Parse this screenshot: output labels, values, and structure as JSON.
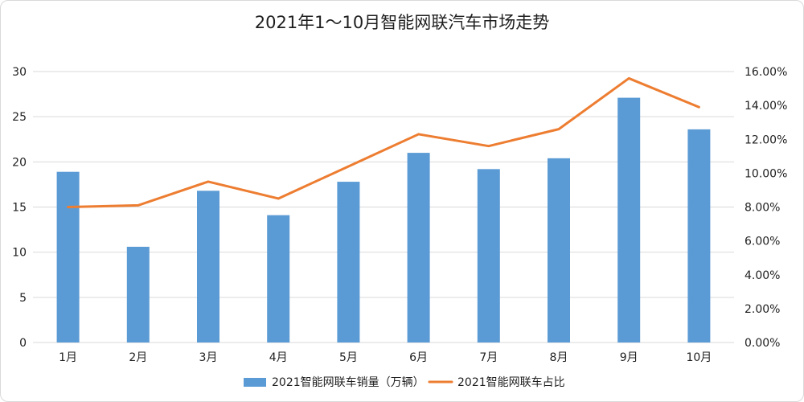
{
  "chart_data": {
    "type": "bar",
    "title": "2021年1～10月智能网联汽车市场走势",
    "categories": [
      "1月",
      "2月",
      "3月",
      "4月",
      "5月",
      "6月",
      "7月",
      "8月",
      "9月",
      "10月"
    ],
    "series": [
      {
        "name": "2021智能网联车销量（万辆）",
        "type": "bar",
        "axis": "left",
        "color": "#5b9bd5",
        "values": [
          18.9,
          10.6,
          16.8,
          14.1,
          17.8,
          21.0,
          19.2,
          20.4,
          27.1,
          23.6
        ]
      },
      {
        "name": "2021智能网联车占比",
        "type": "line",
        "axis": "right",
        "color": "#ed7d31",
        "values": [
          0.08,
          0.081,
          0.095,
          0.085,
          0.104,
          0.123,
          0.116,
          0.126,
          0.156,
          0.139
        ]
      }
    ],
    "ylim": [
      0,
      30
    ],
    "y2lim": [
      0,
      0.16
    ],
    "left_ticks": [
      "0",
      "5",
      "10",
      "15",
      "20",
      "25",
      "30"
    ],
    "right_ticks": [
      "0.00%",
      "2.00%",
      "4.00%",
      "6.00%",
      "8.00%",
      "10.00%",
      "12.00%",
      "14.00%",
      "16.00%"
    ],
    "grid": true,
    "legend_position": "bottom"
  }
}
